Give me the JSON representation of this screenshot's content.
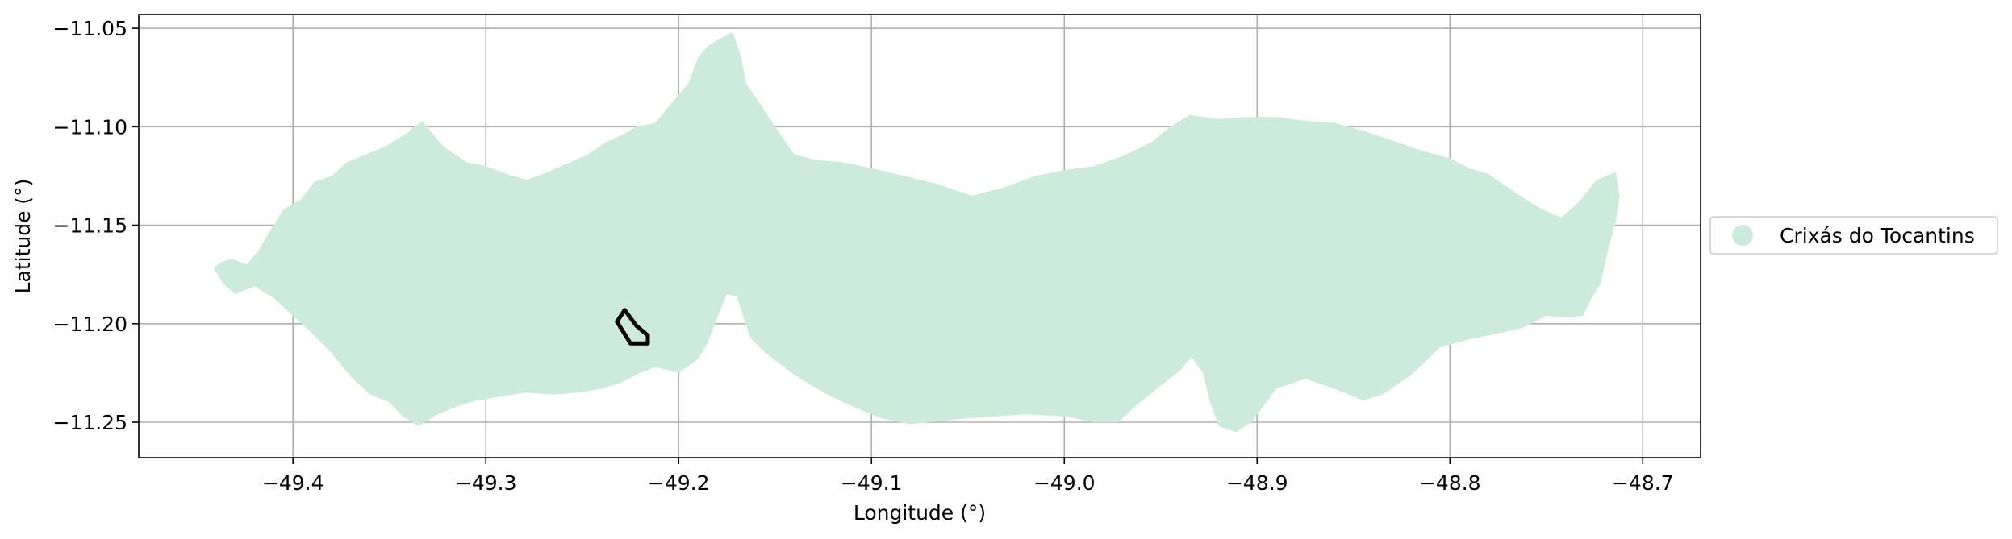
{
  "chart_data": {
    "type": "map",
    "xlabel": "Longitude (°)",
    "ylabel": "Latitude (°)",
    "xlim": [
      -49.48,
      -48.67
    ],
    "ylim": [
      -11.268,
      -11.043
    ],
    "grid": true,
    "x_ticks": [
      -49.4,
      -49.3,
      -49.2,
      -49.1,
      -49.0,
      -48.9,
      -48.8,
      -48.7
    ],
    "x_tick_labels": [
      "−49.4",
      "−49.3",
      "−49.2",
      "−49.1",
      "−49.0",
      "−48.9",
      "−48.8",
      "−48.7"
    ],
    "y_ticks": [
      -11.05,
      -11.1,
      -11.15,
      -11.2,
      -11.25
    ],
    "y_tick_labels": [
      "−11.05",
      "−11.10",
      "−11.15",
      "−11.20",
      "−11.25"
    ],
    "legend": {
      "placement": "right-outside",
      "entries": [
        {
          "label": "Crixás do Tocantins",
          "color": "#cdebdd"
        }
      ]
    },
    "regions": [
      {
        "name": "Crixás do Tocantins",
        "fill": "#cdebdd",
        "boundary": [
          [
            -49.441,
            -11.172
          ],
          [
            -49.438,
            -11.169
          ],
          [
            -49.432,
            -11.167
          ],
          [
            -49.424,
            -11.17
          ],
          [
            -49.418,
            -11.163
          ],
          [
            -49.412,
            -11.153
          ],
          [
            -49.405,
            -11.142
          ],
          [
            -49.396,
            -11.137
          ],
          [
            -49.389,
            -11.128
          ],
          [
            -49.38,
            -11.125
          ],
          [
            -49.372,
            -11.118
          ],
          [
            -49.362,
            -11.114
          ],
          [
            -49.352,
            -11.11
          ],
          [
            -49.342,
            -11.104
          ],
          [
            -49.333,
            -11.097
          ],
          [
            -49.322,
            -11.11
          ],
          [
            -49.31,
            -11.118
          ],
          [
            -49.3,
            -11.12
          ],
          [
            -49.289,
            -11.124
          ],
          [
            -49.279,
            -11.127
          ],
          [
            -49.268,
            -11.123
          ],
          [
            -49.256,
            -11.118
          ],
          [
            -49.247,
            -11.114
          ],
          [
            -49.238,
            -11.108
          ],
          [
            -49.229,
            -11.104
          ],
          [
            -49.222,
            -11.1
          ],
          [
            -49.212,
            -11.098
          ],
          [
            -49.203,
            -11.087
          ],
          [
            -49.195,
            -11.078
          ],
          [
            -49.19,
            -11.065
          ],
          [
            -49.185,
            -11.059
          ],
          [
            -49.178,
            -11.055
          ],
          [
            -49.172,
            -11.052
          ],
          [
            -49.168,
            -11.063
          ],
          [
            -49.165,
            -11.078
          ],
          [
            -49.158,
            -11.088
          ],
          [
            -49.15,
            -11.1
          ],
          [
            -49.14,
            -11.114
          ],
          [
            -49.128,
            -11.117
          ],
          [
            -49.115,
            -11.118
          ],
          [
            -49.1,
            -11.121
          ],
          [
            -49.083,
            -11.125
          ],
          [
            -49.066,
            -11.129
          ],
          [
            -49.048,
            -11.135
          ],
          [
            -49.032,
            -11.131
          ],
          [
            -49.015,
            -11.125
          ],
          [
            -49.0,
            -11.122
          ],
          [
            -48.985,
            -11.12
          ],
          [
            -48.97,
            -11.115
          ],
          [
            -48.955,
            -11.108
          ],
          [
            -48.945,
            -11.1
          ],
          [
            -48.935,
            -11.094
          ],
          [
            -48.92,
            -11.096
          ],
          [
            -48.905,
            -11.095
          ],
          [
            -48.89,
            -11.095
          ],
          [
            -48.875,
            -11.097
          ],
          [
            -48.86,
            -11.098
          ],
          [
            -48.845,
            -11.102
          ],
          [
            -48.83,
            -11.107
          ],
          [
            -48.815,
            -11.112
          ],
          [
            -48.8,
            -11.116
          ],
          [
            -48.79,
            -11.121
          ],
          [
            -48.78,
            -11.124
          ],
          [
            -48.771,
            -11.13
          ],
          [
            -48.762,
            -11.136
          ],
          [
            -48.752,
            -11.142
          ],
          [
            -48.742,
            -11.146
          ],
          [
            -48.733,
            -11.138
          ],
          [
            -48.724,
            -11.127
          ],
          [
            -48.714,
            -11.123
          ],
          [
            -48.712,
            -11.135
          ],
          [
            -48.714,
            -11.148
          ],
          [
            -48.718,
            -11.163
          ],
          [
            -48.722,
            -11.18
          ],
          [
            -48.727,
            -11.188
          ],
          [
            -48.731,
            -11.196
          ],
          [
            -48.74,
            -11.197
          ],
          [
            -48.75,
            -11.196
          ],
          [
            -48.762,
            -11.202
          ],
          [
            -48.775,
            -11.205
          ],
          [
            -48.79,
            -11.208
          ],
          [
            -48.805,
            -11.212
          ],
          [
            -48.82,
            -11.226
          ],
          [
            -48.835,
            -11.236
          ],
          [
            -48.845,
            -11.239
          ],
          [
            -48.86,
            -11.233
          ],
          [
            -48.875,
            -11.228
          ],
          [
            -48.89,
            -11.233
          ],
          [
            -48.903,
            -11.25
          ],
          [
            -48.911,
            -11.255
          ],
          [
            -48.92,
            -11.252
          ],
          [
            -48.925,
            -11.238
          ],
          [
            -48.928,
            -11.225
          ],
          [
            -48.934,
            -11.217
          ],
          [
            -48.94,
            -11.224
          ],
          [
            -48.952,
            -11.233
          ],
          [
            -48.962,
            -11.241
          ],
          [
            -48.972,
            -11.25
          ],
          [
            -48.985,
            -11.25
          ],
          [
            -49.0,
            -11.247
          ],
          [
            -49.02,
            -11.246
          ],
          [
            -49.05,
            -11.248
          ],
          [
            -49.08,
            -11.251
          ],
          [
            -49.095,
            -11.248
          ],
          [
            -49.11,
            -11.242
          ],
          [
            -49.125,
            -11.235
          ],
          [
            -49.14,
            -11.226
          ],
          [
            -49.155,
            -11.215
          ],
          [
            -49.163,
            -11.207
          ],
          [
            -49.17,
            -11.186
          ],
          [
            -49.175,
            -11.185
          ],
          [
            -49.18,
            -11.197
          ],
          [
            -49.185,
            -11.21
          ],
          [
            -49.19,
            -11.218
          ],
          [
            -49.2,
            -11.225
          ],
          [
            -49.212,
            -11.222
          ],
          [
            -49.22,
            -11.225
          ],
          [
            -49.23,
            -11.23
          ],
          [
            -49.24,
            -11.233
          ],
          [
            -49.252,
            -11.235
          ],
          [
            -49.265,
            -11.236
          ],
          [
            -49.28,
            -11.235
          ],
          [
            -49.292,
            -11.237
          ],
          [
            -49.305,
            -11.239
          ],
          [
            -49.315,
            -11.242
          ],
          [
            -49.325,
            -11.246
          ],
          [
            -49.335,
            -11.252
          ],
          [
            -49.343,
            -11.247
          ],
          [
            -49.35,
            -11.24
          ],
          [
            -49.36,
            -11.236
          ],
          [
            -49.37,
            -11.227
          ],
          [
            -49.38,
            -11.215
          ],
          [
            -49.39,
            -11.205
          ],
          [
            -49.4,
            -11.196
          ],
          [
            -49.41,
            -11.187
          ],
          [
            -49.42,
            -11.181
          ],
          [
            -49.43,
            -11.185
          ],
          [
            -49.436,
            -11.18
          ]
        ]
      },
      {
        "name": "",
        "fill": "none",
        "stroke": "#000000",
        "boundary": [
          [
            -49.228,
            -11.193
          ],
          [
            -49.232,
            -11.199
          ],
          [
            -49.225,
            -11.21
          ],
          [
            -49.216,
            -11.21
          ],
          [
            -49.216,
            -11.206
          ],
          [
            -49.222,
            -11.201
          ]
        ]
      }
    ]
  }
}
